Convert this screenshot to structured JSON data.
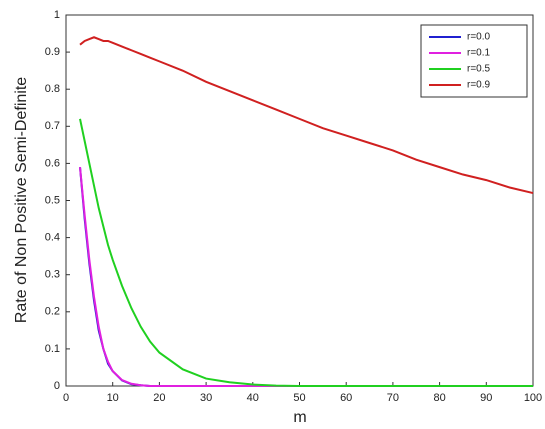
{
  "chart_data": {
    "type": "line",
    "x_label": "m",
    "y_label": "Rate of Non Positive Semi-Definite",
    "x": [
      3,
      4,
      5,
      6,
      7,
      8,
      9,
      10,
      12,
      14,
      16,
      18,
      20,
      25,
      30,
      35,
      40,
      45,
      50,
      55,
      60,
      65,
      70,
      75,
      80,
      85,
      90,
      95,
      100
    ],
    "series": [
      {
        "name": "r=0.0",
        "color": "#2020d0",
        "values": [
          0.59,
          0.45,
          0.33,
          0.23,
          0.15,
          0.1,
          0.06,
          0.04,
          0.015,
          0.005,
          0.002,
          0,
          0,
          0,
          0,
          0,
          0,
          0,
          0,
          0,
          0,
          0,
          0,
          0,
          0,
          0,
          0,
          0,
          0
        ]
      },
      {
        "name": "r=0.1",
        "color": "#e020e0",
        "values": [
          0.59,
          0.46,
          0.34,
          0.24,
          0.16,
          0.1,
          0.065,
          0.04,
          0.016,
          0.006,
          0.002,
          0,
          0,
          0,
          0,
          0,
          0,
          0,
          0,
          0,
          0,
          0,
          0,
          0,
          0,
          0,
          0,
          0,
          0
        ]
      },
      {
        "name": "r=0.5",
        "color": "#20d020",
        "values": [
          0.72,
          0.66,
          0.6,
          0.54,
          0.48,
          0.43,
          0.38,
          0.34,
          0.27,
          0.21,
          0.16,
          0.12,
          0.09,
          0.045,
          0.02,
          0.01,
          0.004,
          0.001,
          0,
          0,
          0,
          0,
          0,
          0,
          0,
          0,
          0,
          0,
          0
        ]
      },
      {
        "name": "r=0.9",
        "color": "#d02020",
        "values": [
          0.92,
          0.93,
          0.935,
          0.94,
          0.935,
          0.93,
          0.93,
          0.925,
          0.915,
          0.905,
          0.895,
          0.885,
          0.875,
          0.85,
          0.82,
          0.795,
          0.77,
          0.745,
          0.72,
          0.695,
          0.675,
          0.655,
          0.635,
          0.61,
          0.59,
          0.57,
          0.555,
          0.535,
          0.52
        ]
      }
    ],
    "xlim": [
      0,
      100
    ],
    "xticks": [
      0,
      10,
      20,
      30,
      40,
      50,
      60,
      70,
      80,
      90,
      100
    ],
    "ylim": [
      0,
      1
    ],
    "yticks": [
      0,
      0.1,
      0.2,
      0.3,
      0.4,
      0.5,
      0.6,
      0.7,
      0.8,
      0.9,
      1
    ],
    "grid": false,
    "legend": "upper right"
  }
}
